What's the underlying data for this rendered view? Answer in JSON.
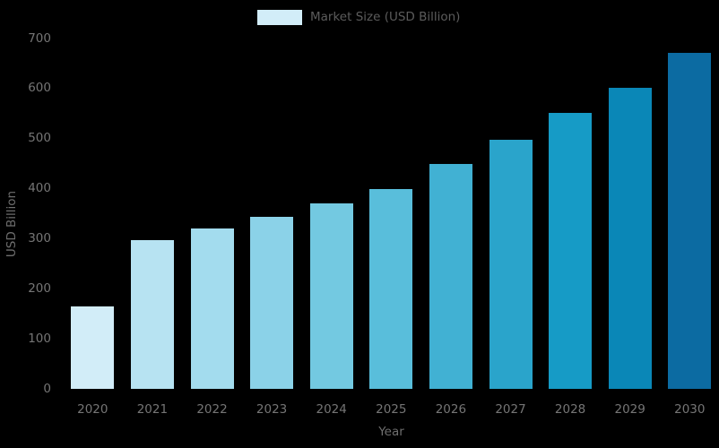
{
  "chart_data": {
    "type": "bar",
    "title": "",
    "legend": {
      "label": "Market Size (USD Billion)",
      "swatch_color": "#d2edf8",
      "position": "top-center"
    },
    "xlabel": "Year",
    "ylabel": "USD Billion",
    "categories": [
      "2020",
      "2021",
      "2022",
      "2023",
      "2024",
      "2025",
      "2026",
      "2027",
      "2028",
      "2029",
      "2030"
    ],
    "values": [
      165,
      297,
      320,
      343,
      370,
      398,
      448,
      497,
      550,
      600,
      670
    ],
    "bar_colors": [
      "#d2edf8",
      "#b7e3f2",
      "#a3dcee",
      "#8bd2e8",
      "#73c9e1",
      "#59bedb",
      "#41b1d3",
      "#2aa4cb",
      "#169bc6",
      "#0a87b7",
      "#0c6ba2"
    ],
    "ylim": [
      0,
      700
    ],
    "yticks": [
      0,
      100,
      200,
      300,
      400,
      500,
      600,
      700
    ],
    "grid": false,
    "colors": {
      "background": "#000000",
      "tick_text": "#757575",
      "axis_title_text": "#6e6e6e",
      "legend_text": "#5c5c5c"
    }
  }
}
